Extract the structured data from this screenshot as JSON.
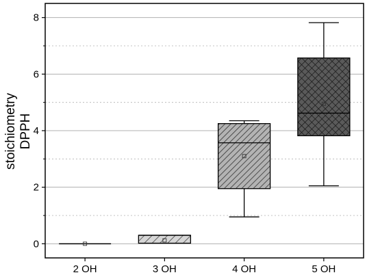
{
  "chart_data": {
    "type": "box",
    "title": "",
    "xlabel": "",
    "ylabel_lines": [
      "stoichiometry",
      "DPPH"
    ],
    "ylim": [
      -0.5,
      8.5
    ],
    "yticks": [
      0,
      2,
      4,
      6,
      8
    ],
    "ytick_labels": [
      "0",
      "2",
      "4",
      "6",
      "8"
    ],
    "grid": true,
    "categories": [
      "2 OH",
      "3 OH",
      "4 OH",
      "5 OH"
    ],
    "boxes": [
      {
        "category": "2 OH",
        "whisker_low": 0.0,
        "q1": 0.0,
        "median": 0.0,
        "q3": 0.0,
        "whisker_high": 0.0,
        "mean": 0.0,
        "pattern": "none"
      },
      {
        "category": "3 OH",
        "whisker_low": 0.02,
        "q1": 0.02,
        "median": 0.3,
        "q3": 0.3,
        "whisker_high": 0.3,
        "mean": 0.12,
        "pattern": "diagonal-light"
      },
      {
        "category": "4 OH",
        "whisker_low": 0.95,
        "q1": 1.95,
        "median": 3.57,
        "q3": 4.25,
        "whisker_high": 4.35,
        "mean": 3.1,
        "pattern": "diagonal-dense"
      },
      {
        "category": "5 OH",
        "whisker_low": 2.05,
        "q1": 3.82,
        "median": 4.62,
        "q3": 6.57,
        "whisker_high": 7.82,
        "mean": 4.95,
        "pattern": "crosshatch"
      }
    ],
    "colors": {
      "box_stroke": "#000000",
      "fill_light": "#cfcfcf",
      "fill_mid": "#a8a8a8",
      "fill_dark": "#4a4a4a",
      "grid": "#b0b0b0"
    }
  }
}
